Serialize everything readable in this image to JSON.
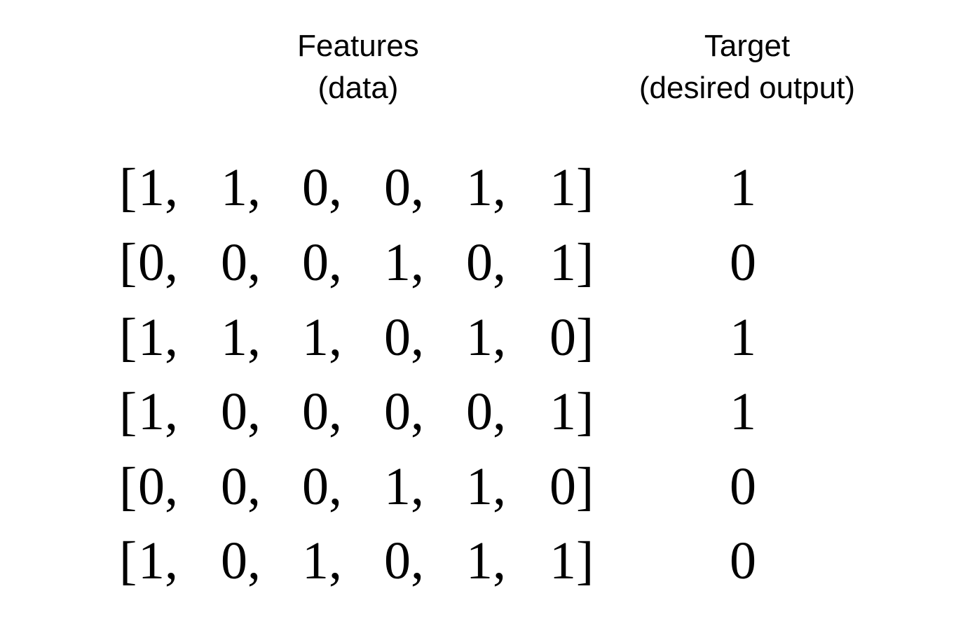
{
  "headers": {
    "features_line1": "Features",
    "features_line2": "(data)",
    "target_line1": "Target",
    "target_line2": "(desired output)"
  },
  "rows": [
    {
      "features": [
        "1",
        "1",
        "0",
        "0",
        "1",
        "1"
      ],
      "target": "1"
    },
    {
      "features": [
        "0",
        "0",
        "0",
        "1",
        "0",
        "1"
      ],
      "target": "0"
    },
    {
      "features": [
        "1",
        "1",
        "1",
        "0",
        "1",
        "0"
      ],
      "target": "1"
    },
    {
      "features": [
        "1",
        "0",
        "0",
        "0",
        "0",
        "1"
      ],
      "target": "1"
    },
    {
      "features": [
        "0",
        "0",
        "0",
        "1",
        "1",
        "0"
      ],
      "target": "0"
    },
    {
      "features": [
        "1",
        "0",
        "1",
        "0",
        "1",
        "1"
      ],
      "target": "0"
    }
  ],
  "punctuation": {
    "open": "[",
    "close": "]",
    "separator": ","
  }
}
